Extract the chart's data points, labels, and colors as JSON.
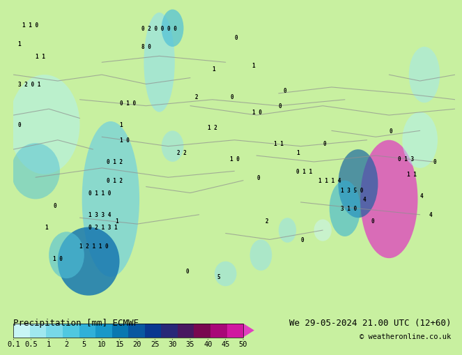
{
  "title_left": "Precipitation [mm] ECMWF",
  "title_right": "We 29-05-2024 21.00 UTC (12+60)",
  "subtitle_right": "© weatheronline.co.uk",
  "colorbar_labels": [
    "0.1",
    "0.5",
    "1",
    "2",
    "5",
    "10",
    "15",
    "20",
    "25",
    "30",
    "35",
    "40",
    "45",
    "50"
  ],
  "colorbar_colors": [
    "#c8f5f5",
    "#a0e8f0",
    "#78d8e8",
    "#50c8e0",
    "#30b0d8",
    "#1898c8",
    "#0878b0",
    "#0858a0",
    "#083890",
    "#282878",
    "#481860",
    "#780850",
    "#a80878",
    "#d018a0",
    "#e040c0"
  ],
  "map_bg_color": "#c8f0a0",
  "border_color": "#909090",
  "text_color": "#000000",
  "font_size_title": 9,
  "font_size_tick": 7.5
}
